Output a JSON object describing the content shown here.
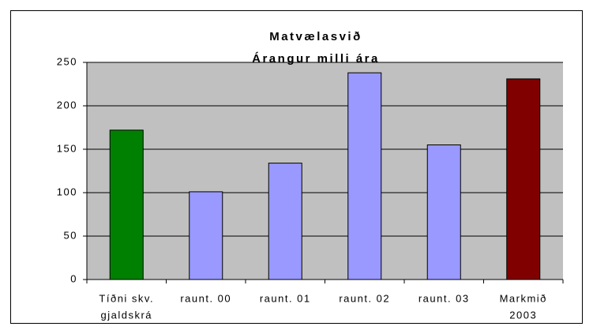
{
  "chart_data": {
    "type": "bar",
    "title": [
      "Matvælasvið",
      "Árangur milli ára"
    ],
    "categories": [
      [
        "Tíðni skv.",
        "gjaldskrá"
      ],
      [
        "raunt. 00"
      ],
      [
        "raunt. 01"
      ],
      [
        "raunt. 02"
      ],
      [
        "raunt. 03"
      ],
      [
        "Markmið",
        "2003"
      ]
    ],
    "values": [
      172,
      101,
      134,
      238,
      155,
      231
    ],
    "colors": [
      "#008000",
      "#9999ff",
      "#9999ff",
      "#9999ff",
      "#9999ff",
      "#800000"
    ],
    "ylim": [
      0,
      250
    ],
    "yticks": [
      0,
      50,
      100,
      150,
      200,
      250
    ],
    "grid": true
  }
}
